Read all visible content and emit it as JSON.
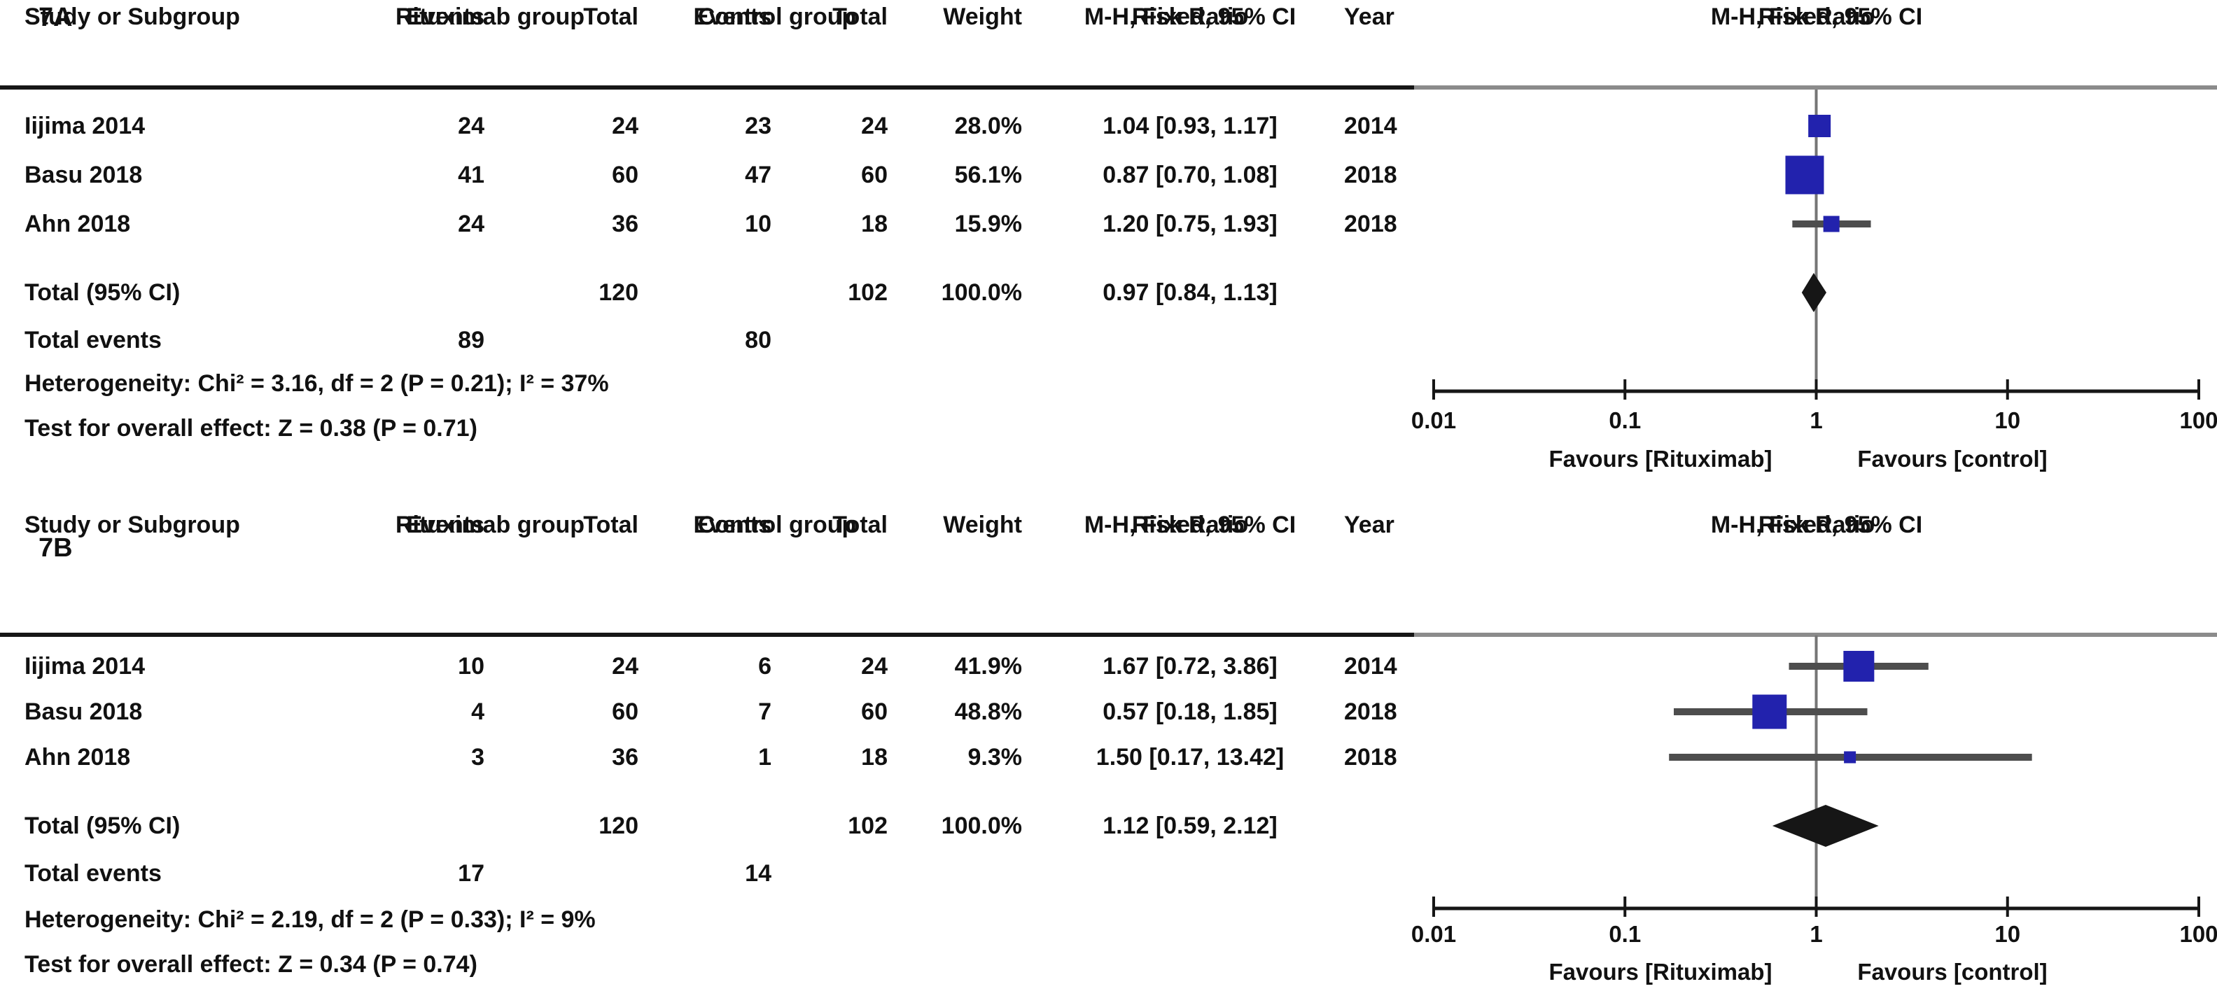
{
  "headers": {
    "study": "Study or Subgroup",
    "group1": "Rituximab group",
    "group2": "Control group",
    "events": "Events",
    "total": "Total",
    "weight": "Weight",
    "risk_ratio": "Risk Ratio",
    "method": "M-H, Fixed, 95% CI",
    "year": "Year"
  },
  "colors": {
    "marker_blue": "#2222ad",
    "ci_line": "#4d4d4d",
    "axis": "#161616",
    "zero_line": "#757575",
    "diamond": "#161616",
    "text": "#111111"
  },
  "chart_data": [
    {
      "type": "forest",
      "panel": "7A",
      "effect_measure": "Risk Ratio",
      "model": "M-H, Fixed, 95% CI",
      "x_scale": "log",
      "x_range": [
        0.01,
        100
      ],
      "x_ticks": [
        0.01,
        0.1,
        1,
        10,
        100
      ],
      "x_axis_labels": [
        "Favours [Rituximab]",
        "Favours [control]"
      ],
      "studies": [
        {
          "study": "Iijima 2014",
          "events_rituximab": 24,
          "total_rituximab": 24,
          "events_control": 23,
          "total_control": 24,
          "weight_text": "28.0%",
          "weight_pct": 28.0,
          "rr": 1.04,
          "ci_low": 0.93,
          "ci_high": 1.17,
          "ci_text": "1.04 [0.93, 1.17]",
          "year": 2014
        },
        {
          "study": "Basu 2018",
          "events_rituximab": 41,
          "total_rituximab": 60,
          "events_control": 47,
          "total_control": 60,
          "weight_text": "56.1%",
          "weight_pct": 56.1,
          "rr": 0.87,
          "ci_low": 0.7,
          "ci_high": 1.08,
          "ci_text": "0.87 [0.70, 1.08]",
          "year": 2018
        },
        {
          "study": "Ahn 2018",
          "events_rituximab": 24,
          "total_rituximab": 36,
          "events_control": 10,
          "total_control": 18,
          "weight_text": "15.9%",
          "weight_pct": 15.9,
          "rr": 1.2,
          "ci_low": 0.75,
          "ci_high": 1.93,
          "ci_text": "1.20 [0.75, 1.93]",
          "year": 2018
        }
      ],
      "total": {
        "label": "Total (95% CI)",
        "total_rituximab": 120,
        "total_control": 102,
        "weight_text": "100.0%",
        "rr": 0.97,
        "ci_low": 0.84,
        "ci_high": 1.13,
        "ci_text": "0.97 [0.84, 1.13]"
      },
      "total_events": {
        "label": "Total events",
        "rituximab": 89,
        "control": 80
      },
      "heterogeneity": "Heterogeneity: Chi² = 3.16, df = 2 (P = 0.21); I² = 37%",
      "overall_effect": "Test for overall effect: Z = 0.38 (P = 0.71)"
    },
    {
      "type": "forest",
      "panel": "7B",
      "effect_measure": "Risk Ratio",
      "model": "M-H, Fixed, 95% CI",
      "x_scale": "log",
      "x_range": [
        0.01,
        100
      ],
      "x_ticks": [
        0.01,
        0.1,
        1,
        10,
        100
      ],
      "x_axis_labels": [
        "Favours [Rituximab]",
        "Favours [control]"
      ],
      "studies": [
        {
          "study": "Iijima 2014",
          "events_rituximab": 10,
          "total_rituximab": 24,
          "events_control": 6,
          "total_control": 24,
          "weight_text": "41.9%",
          "weight_pct": 41.9,
          "rr": 1.67,
          "ci_low": 0.72,
          "ci_high": 3.86,
          "ci_text": "1.67 [0.72, 3.86]",
          "year": 2014
        },
        {
          "study": "Basu 2018",
          "events_rituximab": 4,
          "total_rituximab": 60,
          "events_control": 7,
          "total_control": 60,
          "weight_text": "48.8%",
          "weight_pct": 48.8,
          "rr": 0.57,
          "ci_low": 0.18,
          "ci_high": 1.85,
          "ci_text": "0.57 [0.18, 1.85]",
          "year": 2018
        },
        {
          "study": "Ahn 2018",
          "events_rituximab": 3,
          "total_rituximab": 36,
          "events_control": 1,
          "total_control": 18,
          "weight_text": "9.3%",
          "weight_pct": 9.3,
          "rr": 1.5,
          "ci_low": 0.17,
          "ci_high": 13.42,
          "ci_text": "1.50 [0.17, 13.42]",
          "year": 2018
        }
      ],
      "total": {
        "label": "Total (95% CI)",
        "total_rituximab": 120,
        "total_control": 102,
        "weight_text": "100.0%",
        "rr": 1.12,
        "ci_low": 0.59,
        "ci_high": 2.12,
        "ci_text": "1.12 [0.59, 2.12]"
      },
      "total_events": {
        "label": "Total events",
        "rituximab": 17,
        "control": 14
      },
      "heterogeneity": "Heterogeneity: Chi² = 2.19, df = 2 (P = 0.33); I² = 9%",
      "overall_effect": "Test for overall effect: Z = 0.34 (P = 0.74)"
    }
  ]
}
